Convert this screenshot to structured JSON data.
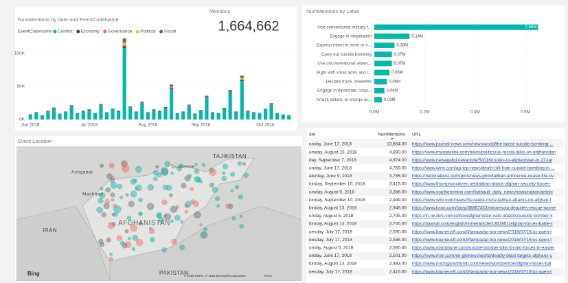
{
  "chart_data": [
    {
      "type": "stacked_bar",
      "title": "NumMentions by date and EventCodeName",
      "legend_title": "EventCodeName",
      "categories": [
        "Jun 2018",
        null,
        null,
        null,
        null,
        null,
        null,
        null,
        null,
        null,
        "Jul 2018",
        null,
        null,
        null,
        null,
        null,
        null,
        null,
        null,
        null,
        "Aug 2018",
        null,
        null,
        null,
        null,
        null,
        null,
        null,
        null,
        "Sep 2018",
        null,
        null,
        null,
        null,
        null,
        null,
        null,
        null,
        null,
        null,
        "Oct 2018",
        null,
        null,
        null,
        null
      ],
      "series": [
        {
          "name": "Conflict",
          "color": "#01b8aa",
          "values": [
            7000,
            10000,
            6000,
            12000,
            16000,
            8000,
            11000,
            19000,
            9000,
            12000,
            14000,
            9000,
            21000,
            10000,
            15000,
            12000,
            108000,
            18000,
            11000,
            24000,
            10000,
            14000,
            12000,
            17000,
            46000,
            9000,
            11000,
            20000,
            8000,
            13000,
            32000,
            10000,
            9000,
            16000,
            40000,
            11000,
            58000,
            12000,
            10000,
            9000,
            15000,
            22000,
            9000,
            7000,
            6000
          ]
        },
        {
          "name": "Economy",
          "color": "#374649",
          "values": [
            300,
            300,
            200,
            400,
            500,
            300,
            300,
            600,
            300,
            400,
            400,
            300,
            600,
            300,
            400,
            400,
            2500,
            500,
            300,
            700,
            300,
            400,
            400,
            500,
            1500,
            300,
            300,
            600,
            300,
            400,
            900,
            300,
            300,
            500,
            1200,
            300,
            1600,
            400,
            300,
            300,
            400,
            600,
            300,
            200,
            200
          ]
        },
        {
          "name": "Governance",
          "color": "#fd625e",
          "values": [
            0,
            0,
            0,
            0,
            300,
            0,
            0,
            500,
            0,
            0,
            0,
            0,
            600,
            0,
            0,
            0,
            2000,
            0,
            0,
            500,
            0,
            0,
            0,
            0,
            1500,
            0,
            0,
            400,
            0,
            0,
            800,
            0,
            0,
            0,
            900,
            0,
            1200,
            0,
            0,
            0,
            0,
            500,
            0,
            0,
            0
          ]
        },
        {
          "name": "Political",
          "color": "#f2c80f",
          "values": [
            0,
            0,
            0,
            0,
            0,
            0,
            0,
            0,
            0,
            0,
            0,
            0,
            0,
            0,
            0,
            0,
            4000,
            0,
            0,
            0,
            0,
            0,
            0,
            0,
            1000,
            0,
            0,
            0,
            0,
            0,
            0,
            0,
            0,
            0,
            0,
            0,
            2000,
            0,
            0,
            0,
            0,
            0,
            0,
            0,
            0
          ]
        },
        {
          "name": "Social",
          "color": "#5f6b6d",
          "values": [
            500,
            800,
            400,
            900,
            1200,
            600,
            800,
            1400,
            700,
            900,
            1000,
            700,
            1500,
            700,
            1100,
            900,
            6000,
            1300,
            800,
            1700,
            700,
            1000,
            900,
            1200,
            3000,
            600,
            800,
            1400,
            600,
            900,
            2200,
            700,
            600,
            1100,
            2600,
            800,
            3500,
            900,
            700,
            600,
            1000,
            1500,
            600,
            500,
            400
          ]
        }
      ],
      "ylim": [
        0,
        110000
      ],
      "yticks": [
        {
          "value": 0,
          "label": "0K"
        },
        {
          "value": 50000,
          "label": "50K"
        },
        {
          "value": 100000,
          "label": "100K"
        }
      ],
      "grid": true
    },
    {
      "type": "hbar",
      "title": "NumMentions by Label",
      "color": "#01b8aa",
      "categories": [
        "Use conventional military f...",
        "Engage in negotiation",
        "Express intent to meet or n...",
        "Carry out suicide bombing",
        "Use unconventional violen...",
        "Fight with small arms and l...",
        "Declare truce, ceasefire",
        "Engage in diplomatic coop...",
        "Arrest, detain, or charge wi..."
      ],
      "values": [
        650000,
        140000,
        80000,
        70000,
        70000,
        60000,
        50000,
        40000,
        30000
      ],
      "value_labels": [
        "0.65M",
        "0.14M",
        "0.08M",
        "0.07M",
        "0.07M",
        "0.06M",
        "0.05M",
        "0.04M",
        "0.03M"
      ],
      "xlim": [
        0,
        750000
      ],
      "xticks": [
        {
          "value": 0,
          "label": "0.0M"
        },
        {
          "value": 200000,
          "label": "0.2M"
        },
        {
          "value": 400000,
          "label": "0.4M"
        },
        {
          "value": 600000,
          "label": "0.6M"
        }
      ],
      "grid": true
    }
  ],
  "card": {
    "title": "Mentions",
    "value": {
      "value": 1664662,
      "label": "1,664,662"
    }
  },
  "map": {
    "title": "Event Location",
    "logo": "Bing",
    "attribution": "© 2018 HERE, © 2018 Microsoft Corporation",
    "terms": "Terms",
    "labels": [
      "TAJIKISTAN",
      "Dushanbe",
      "Ashgabat",
      "Mashhad",
      "IRAN",
      "AFGHANISTAN",
      "PAKISTAN"
    ]
  },
  "table": {
    "columns": [
      "ate",
      "NumMentions",
      "URL"
    ],
    "rows": [
      [
        "unday, June 17, 2018",
        "13,864.00",
        "https://www.journal-news.com/news/world/the-latest-suicide-bombing-..."
      ],
      [
        "ursday, August 23, 2018",
        "4,890.00",
        "https://www.mysteteline.com/news/politics/us-russia-talks-on-afghanistan"
      ],
      [
        "day, September 7, 2018",
        "4,874.00",
        "https://www.newagebd.net/article/50016/routes-to-afghanistan-in-22-tal"
      ],
      [
        "unday, June 17, 2018",
        "4,759.00",
        "https://www.wlns.com/ap-top-news/death-toll-from-suicide-bombing-in-..."
      ],
      [
        "aturday, June 9, 2018",
        "3,756.00",
        "https://nationalpost.com/pmn/news-pmn/taliban-announce-cease-fire-ov"
      ],
      [
        "londay, September 10, 2018",
        "3,415.00",
        "https://www.thompsoncitizen.net/taliban-attack-afghan-security-forces-"
      ],
      [
        "ursday, August 9, 2018",
        "3,386.00",
        "https://www.southernminn.com/faribault_daily_news/news/nation/article"
      ],
      [
        "londay, September 10, 2018",
        "2,949.00",
        "https://www.wltx.com/news/the-latest-more-taliban-attacks-on-afghan-f"
      ],
      [
        "londay, August 13, 2018",
        "2,948.00",
        "https://www.ksoo.com/story/38867453/minnesota-deputies-rescue-wome"
      ],
      [
        "unday, August 5, 2018",
        "2,705.00",
        "https://in.reuters.com/article/afghanistan-nato-attacks/suicide-bomber-k"
      ],
      [
        "londay, August 13, 2018",
        "2,700.00",
        "https://aawsat.com/english/home/article/1361901/afghan-forces-battle-t"
      ],
      [
        "uesday, July 17, 2018",
        "2,590.00",
        "https://www.bayneus9.com/ll/tampa/ap-top-news/2018/07/16/us-open-t"
      ],
      [
        "uesday, July 17, 2018",
        "2,586.00",
        "https://www.bayneus9.com/ll/tampa/ap-top-news/2018/07/16/us-open-t"
      ],
      [
        "unday, August 5, 2018",
        "2,560.00",
        "https://www.startribune.com/suicide-bomber-kills-3-nato-forces-in-easter"
      ],
      [
        "unday, June 17, 2018",
        "2,501.00",
        "https://www.msn.com/en-gb/news/world/deadly-blast-targets-afghans-c"
      ],
      [
        "londay, August 13, 2018",
        "2,483.00",
        "https://www.michigansthumb.com/news/world/article/afghan-forces-bat"
      ],
      [
        "uesday, July 17, 2018",
        "2,416.00",
        "https://www.bayneus9.com/ll/tampa/ap-top-news/2018/07/16/us-open-t"
      ]
    ]
  }
}
